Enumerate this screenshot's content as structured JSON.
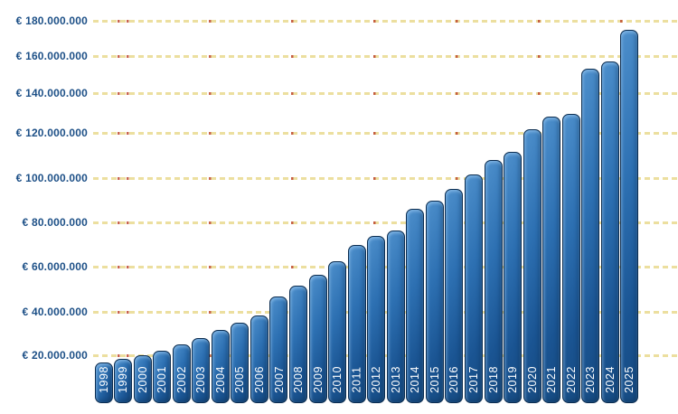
{
  "chart_data": {
    "type": "bar",
    "title": "",
    "legend": "none",
    "grid": "dashed-horizontal",
    "values_unit": "million EUR",
    "categories": [
      "1998",
      "1999",
      "2000",
      "2001",
      "2002",
      "2003",
      "2004",
      "2005",
      "2006",
      "2007",
      "2008",
      "2009",
      "2010",
      "2011",
      "2012",
      "2013",
      "2014",
      "2015",
      "2016",
      "2017",
      "2018",
      "2019",
      "2020",
      "2021",
      "2022",
      "2023",
      "2024",
      "2025"
    ],
    "values": [
      17,
      18.5,
      20,
      22,
      25,
      28,
      31.5,
      35,
      38.5,
      47,
      51.5,
      56.5,
      62.5,
      70,
      74,
      76.5,
      86,
      90,
      95,
      101.5,
      108,
      111.5,
      122,
      128,
      129.5,
      153,
      157,
      175
    ],
    "y_tick_values": [
      20,
      40,
      60,
      80,
      100,
      120,
      140,
      160,
      180
    ],
    "y_tick_labels": [
      "€ 20.000.000",
      "€ 40.000.000",
      "€ 60.000.000",
      "€ 80.000.000",
      "€ 100.000.000",
      "€ 120.000.000",
      "€ 140.000.000",
      "€ 160.000.000",
      "€ 180.000.000"
    ],
    "ylim": [
      0,
      192
    ],
    "xlabel": "",
    "ylabel": "",
    "colors": {
      "bar_fill_light": "#4e90cc",
      "bar_fill_dark": "#164a80",
      "bar_border": "#0b2c4f",
      "bar_label_text": "#ffffff",
      "gridline": "#ecdf9f",
      "gridline_accent": "#be482e",
      "axis_label_text": "#1d5087",
      "background": "#ffffff"
    }
  }
}
